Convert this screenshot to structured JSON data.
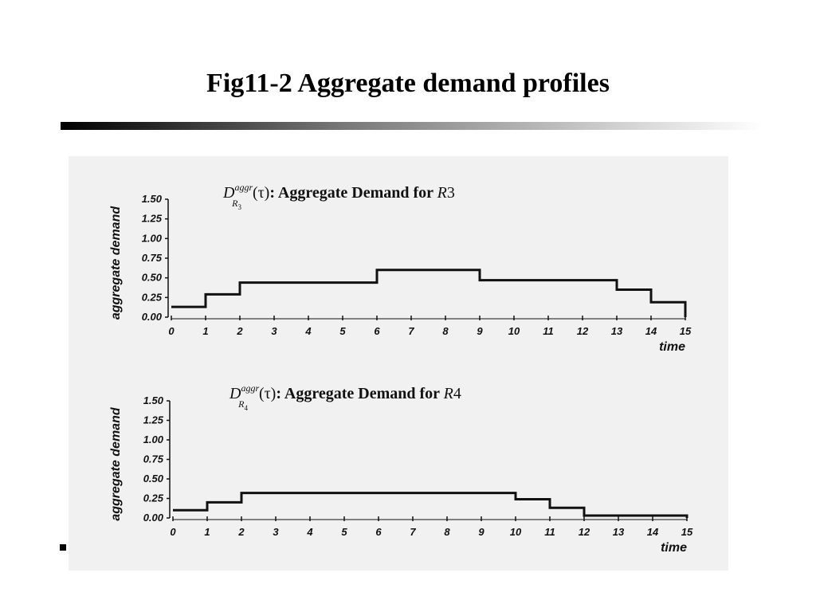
{
  "slide": {
    "title": "Fig11-2 Aggregate demand profiles"
  },
  "chart_data": [
    {
      "type": "line",
      "title": {
        "symbol": "D",
        "superscript": "aggr",
        "subscript_letter": "R",
        "subscript_index": "3",
        "argument": "(τ)",
        "text": ": Aggregate Demand for ",
        "resource_letter": "R",
        "resource_index": "3"
      },
      "xlabel": "time",
      "ylabel": "aggregate demand",
      "xlim": [
        0,
        15
      ],
      "ylim": [
        0,
        1.5
      ],
      "x_ticks": [
        "0",
        "1",
        "2",
        "3",
        "4",
        "5",
        "6",
        "7",
        "8",
        "9",
        "10",
        "11",
        "12",
        "13",
        "14",
        "15"
      ],
      "y_ticks": [
        "0.00",
        "0.25",
        "0.50",
        "0.75",
        "1.00",
        "1.25",
        "1.50"
      ],
      "series": [
        {
          "step": "post",
          "x": [
            0,
            1,
            2,
            6,
            9,
            13,
            14,
            15
          ],
          "y": [
            0.13,
            0.29,
            0.44,
            0.6,
            0.47,
            0.35,
            0.19,
            0.0
          ]
        }
      ]
    },
    {
      "type": "line",
      "title": {
        "symbol": "D",
        "superscript": "aggr",
        "subscript_letter": "R",
        "subscript_index": "4",
        "argument": "(τ)",
        "text": ": Aggregate Demand for ",
        "resource_letter": "R",
        "resource_index": "4"
      },
      "xlabel": "time",
      "ylabel": "aggregate demand",
      "xlim": [
        0,
        15
      ],
      "ylim": [
        0,
        1.5
      ],
      "x_ticks": [
        "0",
        "1",
        "2",
        "3",
        "4",
        "5",
        "6",
        "7",
        "8",
        "9",
        "10",
        "11",
        "12",
        "13",
        "14",
        "15"
      ],
      "y_ticks": [
        "0.00",
        "0.25",
        "0.50",
        "0.75",
        "1.00",
        "1.25",
        "1.50"
      ],
      "series": [
        {
          "step": "post",
          "x": [
            0,
            1,
            2,
            10,
            11,
            12,
            15
          ],
          "y": [
            0.1,
            0.2,
            0.32,
            0.24,
            0.13,
            0.03,
            0.03
          ]
        }
      ]
    }
  ]
}
